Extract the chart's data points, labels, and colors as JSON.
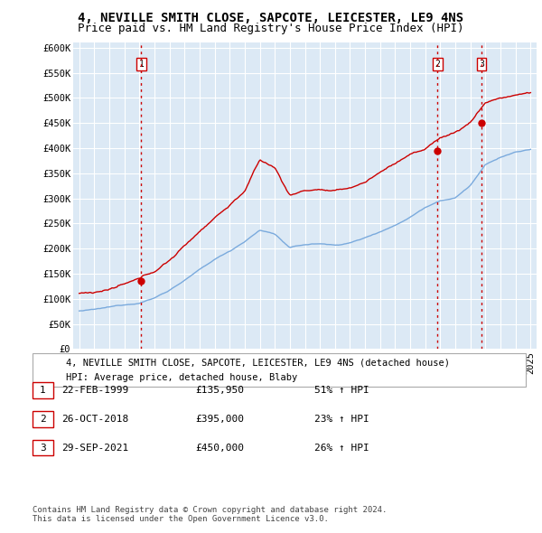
{
  "title": "4, NEVILLE SMITH CLOSE, SAPCOTE, LEICESTER, LE9 4NS",
  "subtitle": "Price paid vs. HM Land Registry's House Price Index (HPI)",
  "ylabel_ticks": [
    "£0",
    "£50K",
    "£100K",
    "£150K",
    "£200K",
    "£250K",
    "£300K",
    "£350K",
    "£400K",
    "£450K",
    "£500K",
    "£550K",
    "£600K"
  ],
  "ytick_values": [
    0,
    50000,
    100000,
    150000,
    200000,
    250000,
    300000,
    350000,
    400000,
    450000,
    500000,
    550000,
    600000
  ],
  "ylim": [
    0,
    610000
  ],
  "xlim_start": 1994.6,
  "xlim_end": 2025.4,
  "sale_dates": [
    1999.13,
    2018.82,
    2021.74
  ],
  "sale_prices": [
    135950,
    395000,
    450000
  ],
  "sale_labels": [
    "1",
    "2",
    "3"
  ],
  "vline_color": "#cc0000",
  "red_line_color": "#cc0000",
  "blue_line_color": "#7aaadd",
  "background_color": "#ffffff",
  "plot_bg_color": "#dce9f5",
  "grid_color": "#ffffff",
  "legend_entries": [
    "4, NEVILLE SMITH CLOSE, SAPCOTE, LEICESTER, LE9 4NS (detached house)",
    "HPI: Average price, detached house, Blaby"
  ],
  "table_rows": [
    {
      "num": "1",
      "date": "22-FEB-1999",
      "price": "£135,950",
      "hpi": "51% ↑ HPI"
    },
    {
      "num": "2",
      "date": "26-OCT-2018",
      "price": "£395,000",
      "hpi": "23% ↑ HPI"
    },
    {
      "num": "3",
      "date": "29-SEP-2021",
      "price": "£450,000",
      "hpi": "26% ↑ HPI"
    }
  ],
  "footer": "Contains HM Land Registry data © Crown copyright and database right 2024.\nThis data is licensed under the Open Government Licence v3.0.",
  "title_fontsize": 10,
  "subtitle_fontsize": 9,
  "tick_fontsize": 7.5,
  "legend_fontsize": 7.5,
  "table_fontsize": 8,
  "footer_fontsize": 6.5
}
